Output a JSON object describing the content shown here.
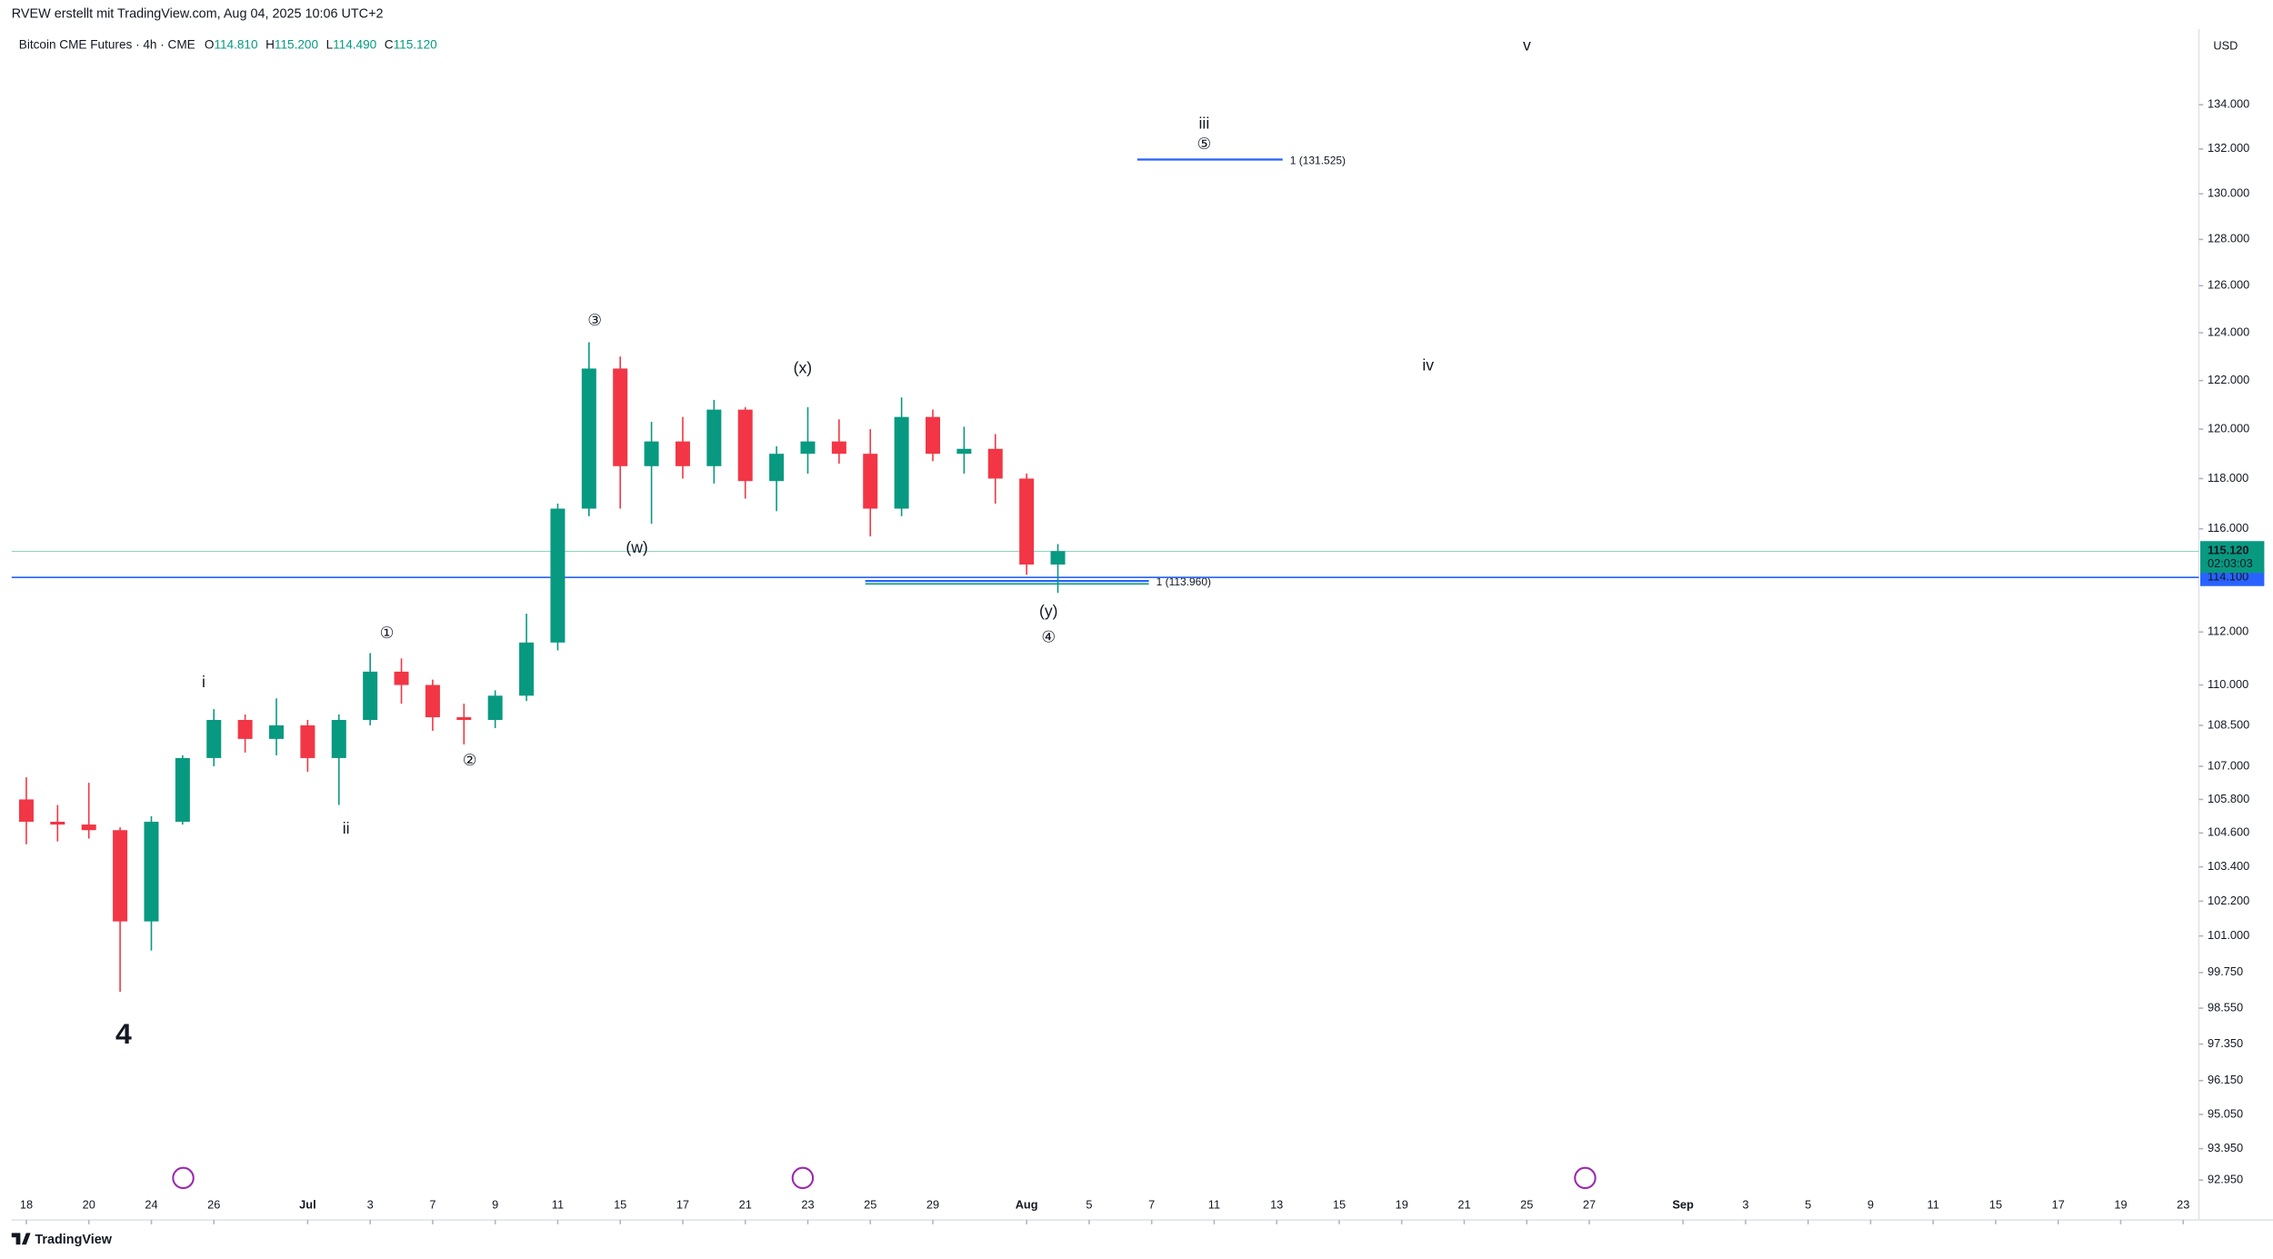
{
  "header": {
    "attribution": "RVEW erstellt mit TradingView.com, Aug 04, 2025 10:06 UTC+2",
    "symbol": "Bitcoin CME Futures · 4h · CME",
    "ohlc": [
      {
        "key": "O",
        "text": "114.810"
      },
      {
        "key": "H",
        "text": "115.200"
      },
      {
        "key": "L",
        "text": "114.490"
      },
      {
        "key": "C",
        "text": "115.120"
      }
    ],
    "brand": "TradingView"
  },
  "chart_data": {
    "type": "candlestick",
    "log_scale": true,
    "currency": "USD",
    "up_color": "#089981",
    "down_color": "#f23645",
    "x": [
      0,
      1,
      2,
      3,
      4,
      5,
      6,
      7,
      8,
      9,
      10,
      11,
      12,
      13,
      14,
      15,
      16,
      17,
      18,
      19,
      20,
      21,
      22,
      23,
      24,
      25,
      26,
      27,
      28,
      29,
      30,
      31,
      32,
      33
    ],
    "open": [
      105800,
      105000,
      104900,
      104700,
      101500,
      105000,
      107300,
      108700,
      108000,
      108500,
      107300,
      108700,
      110500,
      110000,
      108800,
      108700,
      109600,
      111600,
      116800,
      122500,
      118500,
      119500,
      118500,
      120800,
      117900,
      119000,
      119500,
      119000,
      116800,
      120500,
      119000,
      119200,
      118000,
      114600
    ],
    "high": [
      106600,
      105600,
      106400,
      104800,
      105200,
      107400,
      109100,
      108900,
      109500,
      108700,
      108900,
      111200,
      111000,
      110200,
      109300,
      109800,
      112700,
      117000,
      123600,
      123000,
      120300,
      120500,
      121200,
      120900,
      119300,
      120900,
      120400,
      120000,
      121300,
      120800,
      120100,
      119800,
      118200,
      115400
    ],
    "low": [
      104200,
      104300,
      104400,
      99100,
      100500,
      104900,
      107000,
      107500,
      107400,
      106800,
      105600,
      108500,
      109300,
      108300,
      107800,
      108400,
      109400,
      111300,
      116500,
      116800,
      116200,
      118000,
      117800,
      117200,
      116700,
      118200,
      118600,
      115700,
      116500,
      118700,
      118200,
      117000,
      114200,
      113500
    ],
    "close": [
      105000,
      104900,
      104700,
      101500,
      105000,
      107300,
      108700,
      108000,
      108500,
      107300,
      108700,
      110500,
      110000,
      108800,
      108700,
      109600,
      111600,
      116800,
      122500,
      118500,
      119500,
      118500,
      120800,
      117900,
      119000,
      119500,
      119000,
      116800,
      120500,
      119000,
      119200,
      118000,
      114600,
      115120
    ],
    "xlim": [
      -0.47,
      69.5
    ],
    "ylim": [
      91700,
      137500
    ],
    "xticks": [
      {
        "value": 0,
        "label": "18"
      },
      {
        "value": 2,
        "label": "20"
      },
      {
        "value": 4,
        "label": "24"
      },
      {
        "value": 6,
        "label": "26"
      },
      {
        "value": 9,
        "label": "Jul"
      },
      {
        "value": 11,
        "label": "3"
      },
      {
        "value": 13,
        "label": "7"
      },
      {
        "value": 15,
        "label": "9"
      },
      {
        "value": 17,
        "label": "11"
      },
      {
        "value": 19,
        "label": "15"
      },
      {
        "value": 21,
        "label": "17"
      },
      {
        "value": 23,
        "label": "21"
      },
      {
        "value": 25,
        "label": "23"
      },
      {
        "value": 27,
        "label": "25"
      },
      {
        "value": 29,
        "label": "29"
      },
      {
        "value": 32,
        "label": "Aug"
      },
      {
        "value": 34,
        "label": "5"
      },
      {
        "value": 36,
        "label": "7"
      },
      {
        "value": 38,
        "label": "11"
      },
      {
        "value": 40,
        "label": "13"
      },
      {
        "value": 42,
        "label": "15"
      },
      {
        "value": 44,
        "label": "19"
      },
      {
        "value": 46,
        "label": "21"
      },
      {
        "value": 48,
        "label": "25"
      },
      {
        "value": 50,
        "label": "27"
      },
      {
        "value": 53,
        "label": "Sep"
      },
      {
        "value": 55,
        "label": "3"
      },
      {
        "value": 57,
        "label": "5"
      },
      {
        "value": 59,
        "label": "9"
      },
      {
        "value": 61,
        "label": "11"
      },
      {
        "value": 63,
        "label": "15"
      },
      {
        "value": 65,
        "label": "17"
      },
      {
        "value": 67,
        "label": "19"
      },
      {
        "value": 69,
        "label": "23"
      }
    ],
    "yticks": [
      {
        "value": 92950,
        "label": "92.950"
      },
      {
        "value": 93950,
        "label": "93.950"
      },
      {
        "value": 95050,
        "label": "95.050"
      },
      {
        "value": 96150,
        "label": "96.150"
      },
      {
        "value": 97350,
        "label": "97.350"
      },
      {
        "value": 98550,
        "label": "98.550"
      },
      {
        "value": 99750,
        "label": "99.750"
      },
      {
        "value": 101000,
        "label": "101.000"
      },
      {
        "value": 102200,
        "label": "102.200"
      },
      {
        "value": 103400,
        "label": "103.400"
      },
      {
        "value": 104600,
        "label": "104.600"
      },
      {
        "value": 105800,
        "label": "105.800"
      },
      {
        "value": 107000,
        "label": "107.000"
      },
      {
        "value": 108500,
        "label": "108.500"
      },
      {
        "value": 110000,
        "label": "110.000"
      },
      {
        "value": 112000,
        "label": "112.000"
      },
      {
        "value": 116000,
        "label": "116.000"
      },
      {
        "value": 118000,
        "label": "118.000"
      },
      {
        "value": 120000,
        "label": "120.000"
      },
      {
        "value": 122000,
        "label": "122.000"
      },
      {
        "value": 124000,
        "label": "124.000"
      },
      {
        "value": 126000,
        "label": "126.000"
      },
      {
        "value": 128000,
        "label": "128.000"
      },
      {
        "value": 130000,
        "label": "130.000"
      },
      {
        "value": 132000,
        "label": "132.000"
      },
      {
        "value": 134000,
        "label": "134.000"
      }
    ],
    "last_price": {
      "value": 115120,
      "label": "115.120",
      "color": "#089981"
    },
    "countdown": "02:03:03",
    "levels": [
      {
        "value": 131525,
        "label": "1 (131.525)",
        "color": "#2962ff"
      },
      {
        "value": 113960,
        "label": "1 (113.960)",
        "color": "#2962ff"
      },
      {
        "value": 114100,
        "label": "114.100",
        "color": "#2962ff"
      }
    ],
    "annotations": [
      {
        "text": "4",
        "color": "#089981"
      },
      {
        "text": "i",
        "color": "#2962ff"
      },
      {
        "text": "ii",
        "color": "#2962ff"
      },
      {
        "text": "①",
        "color": "#2962ff"
      },
      {
        "text": "②",
        "color": "#2962ff"
      },
      {
        "text": "③",
        "color": "#2962ff"
      },
      {
        "text": "(w)",
        "color": "#43a047"
      },
      {
        "text": "(x)",
        "color": "#43a047"
      },
      {
        "text": "(y)",
        "color": "#43a047"
      },
      {
        "text": "④",
        "color": "#2962ff"
      },
      {
        "text": "iii",
        "color": "#2962ff"
      },
      {
        "text": "⑤",
        "color": "#2962ff"
      },
      {
        "text": "iv",
        "color": "#2962ff"
      },
      {
        "text": "v",
        "color": "#2962ff"
      }
    ]
  }
}
